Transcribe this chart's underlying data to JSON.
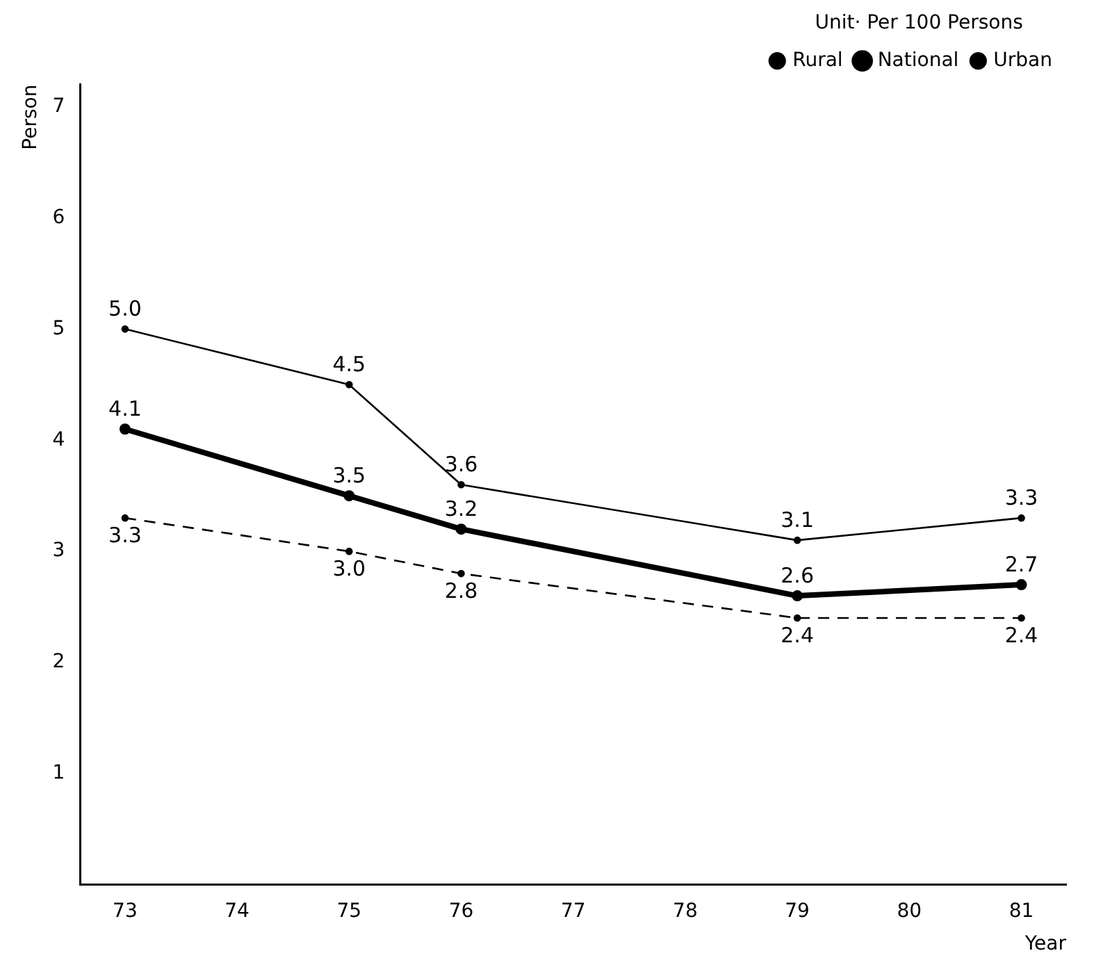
{
  "chart_data": {
    "type": "line",
    "xlabel": "Year",
    "ylabel": "Person",
    "legend_title": "Unit· Per 100 Persons",
    "x": [
      73,
      75,
      76,
      79,
      81
    ],
    "xlim": [
      72.6,
      81.4
    ],
    "xticks": [
      73,
      74,
      75,
      76,
      77,
      78,
      79,
      80,
      81
    ],
    "ylim": [
      0,
      7.2
    ],
    "yticks": [
      1,
      2,
      3,
      4,
      5,
      6,
      7
    ],
    "grid": false,
    "legend": "top right",
    "marker": "circle",
    "series": [
      {
        "name": "Rural",
        "color": "#000000",
        "line_style": "solid",
        "values": [
          5.0,
          4.5,
          3.6,
          3.1,
          3.3
        ],
        "value_labels": [
          "5.0",
          "4.5",
          "3.6",
          "3.1",
          "3.3"
        ]
      },
      {
        "name": "National",
        "color": "#000000",
        "line_style": "solid",
        "values": [
          4.1,
          3.5,
          3.2,
          2.6,
          2.7
        ],
        "value_labels": [
          "4.1",
          "3.5",
          "3.2",
          "2.6",
          "2.7"
        ]
      },
      {
        "name": "Urban",
        "color": "#000000",
        "line_style": "dashed",
        "values": [
          3.3,
          3.0,
          2.8,
          2.4,
          2.4
        ],
        "value_labels": [
          "3.3",
          "3.0",
          "2.8",
          "2.4",
          "2.4"
        ]
      }
    ]
  }
}
